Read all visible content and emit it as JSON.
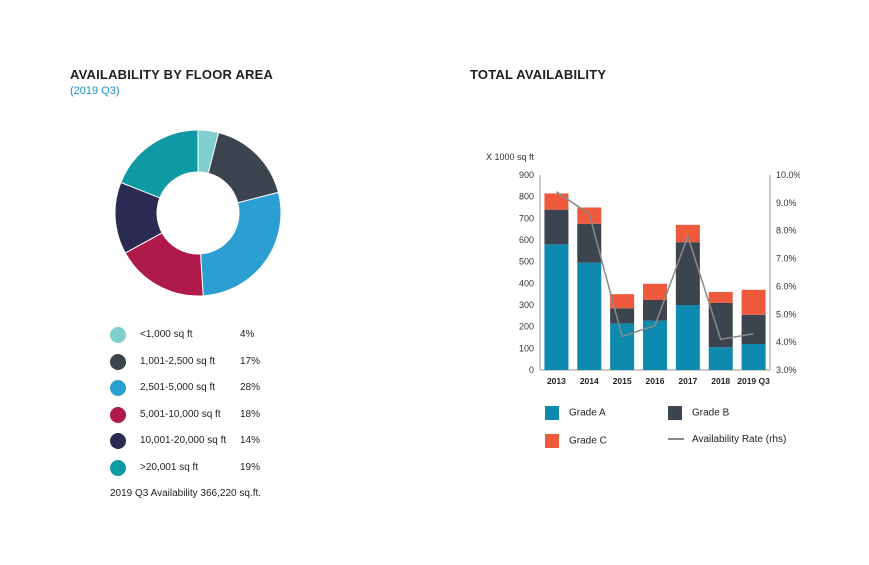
{
  "left": {
    "title": "AVAILABILITY BY FLOOR AREA",
    "subtitle": "(2019 Q3)",
    "note": "2019 Q3 Availability 366,220 sq.ft."
  },
  "right": {
    "title": "TOTAL AVAILABILITY"
  },
  "chart_data": [
    {
      "type": "pie",
      "donut": true,
      "title": "AVAILABILITY BY FLOOR AREA",
      "subtitle": "(2019 Q3)",
      "categories": [
        "<1,000 sq ft",
        "1,001-2,500 sq ft",
        "2,501-5,000 sq ft",
        "5,001-10,000 sq ft",
        "10,001-20,000 sq ft",
        ">20,001 sq ft"
      ],
      "values": [
        4,
        17,
        28,
        18,
        14,
        19
      ],
      "value_labels": [
        "4%",
        "17%",
        "28%",
        "18%",
        "14%",
        "19%"
      ],
      "colors": [
        "#7fcfcf",
        "#3c4450",
        "#2b9fd1",
        "#b01a4b",
        "#2a2a52",
        "#0f9aa3"
      ],
      "legend_position": "bottom"
    },
    {
      "type": "bar",
      "stacked": true,
      "title": "TOTAL AVAILABILITY",
      "ylabel": "X 1000 sq ft",
      "ylim": [
        0,
        900
      ],
      "yticks": [
        "0",
        "100",
        "200",
        "300",
        "400",
        "500",
        "600",
        "700",
        "800",
        "900"
      ],
      "y2lim": [
        3.0,
        10.0
      ],
      "y2ticks": [
        "3.0%",
        "4.0%",
        "5.0%",
        "6.0%",
        "7.0%",
        "8.0%",
        "9.0%",
        "10.0%"
      ],
      "categories": [
        "2013",
        "2014",
        "2015",
        "2016",
        "2017",
        "2018",
        "2019 Q3"
      ],
      "series": [
        {
          "name": "Grade A",
          "color": "#0e8aae",
          "values": [
            580,
            495,
            215,
            228,
            300,
            105,
            120
          ]
        },
        {
          "name": "Grade B",
          "color": "#3c4450",
          "values": [
            160,
            180,
            70,
            95,
            290,
            205,
            135
          ]
        },
        {
          "name": "Grade C",
          "color": "#ef5a3c",
          "values": [
            75,
            75,
            65,
            75,
            80,
            50,
            115
          ]
        }
      ],
      "line_series": {
        "name": "Availability Rate (rhs)",
        "color": "#8a8a8a",
        "axis": "right",
        "values": [
          9.4,
          8.6,
          4.2,
          4.6,
          7.8,
          4.1,
          4.3
        ]
      },
      "grid": false,
      "legend_position": "bottom"
    }
  ]
}
